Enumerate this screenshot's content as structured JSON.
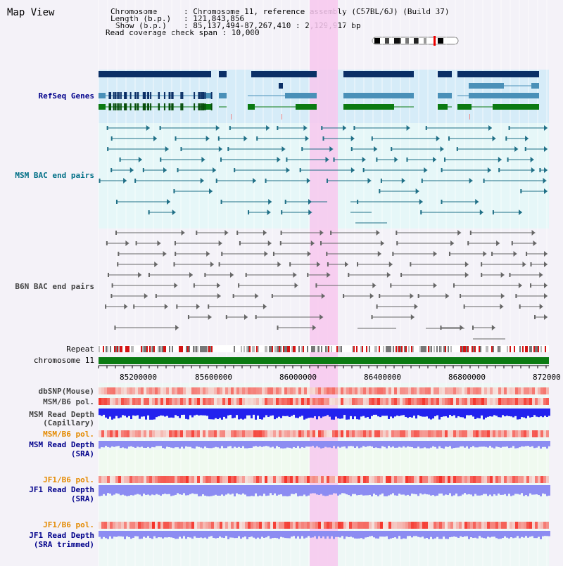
{
  "title": "Map View",
  "header": {
    "chromosome_label": "Chromosome",
    "chromosome_value": "Chromosome 11, reference assembly (C57BL/6J) (Build 37)",
    "length_label": "Length (b.p.)",
    "length_value": "121,843,856",
    "show_label": "Show (b.p.)",
    "show_value": "85,137,494-87,267,410 : 2,129,917 bp",
    "coverage_label": "Read coverage check span",
    "coverage_value": "10,000"
  },
  "tracks": {
    "refseq": "RefSeq Genes",
    "msm_bac": "MSM BAC end pairs",
    "b6n_bac": "B6N BAC end pairs",
    "repeat": "Repeat",
    "chromosome": "chromosome 11",
    "dbsnp": "dbSNP(Mouse)",
    "msm_b6_pol_1": "MSM/B6 pol.",
    "msm_depth_cap_1": "MSM Read Depth",
    "msm_depth_cap_2": "(Capillary)",
    "msm_b6_pol_2": "MSM/B6 pol.",
    "msm_depth_sra_1": "MSM Read Depth",
    "msm_depth_sra_2": "(SRA)",
    "jf1_b6_pol_1": "JF1/B6 pol.",
    "jf1_depth_sra_1": "JF1 Read Depth",
    "jf1_depth_sra_2": "(SRA)",
    "jf1_b6_pol_2": "JF1/B6 pol.",
    "jf1_depth_trim_1": "JF1 Read Depth",
    "jf1_depth_trim_2": "(SRA trimmed)"
  },
  "axis": {
    "ticks": [
      "85200000",
      "85600000",
      "86000000",
      "86400000",
      "86800000",
      "872000"
    ]
  },
  "colors": {
    "refseq_dark": "#0b2f66",
    "refseq_mid": "#4a90b8",
    "refseq_green": "#0b7a12",
    "bac_teal": "#1f6f86",
    "bac_gray": "#666666",
    "highlight": "#f7c8ee",
    "chromosome_bar": "#0b7a12",
    "depth_blue": "#2222ee",
    "depth_light": "#8c8cf2"
  }
}
